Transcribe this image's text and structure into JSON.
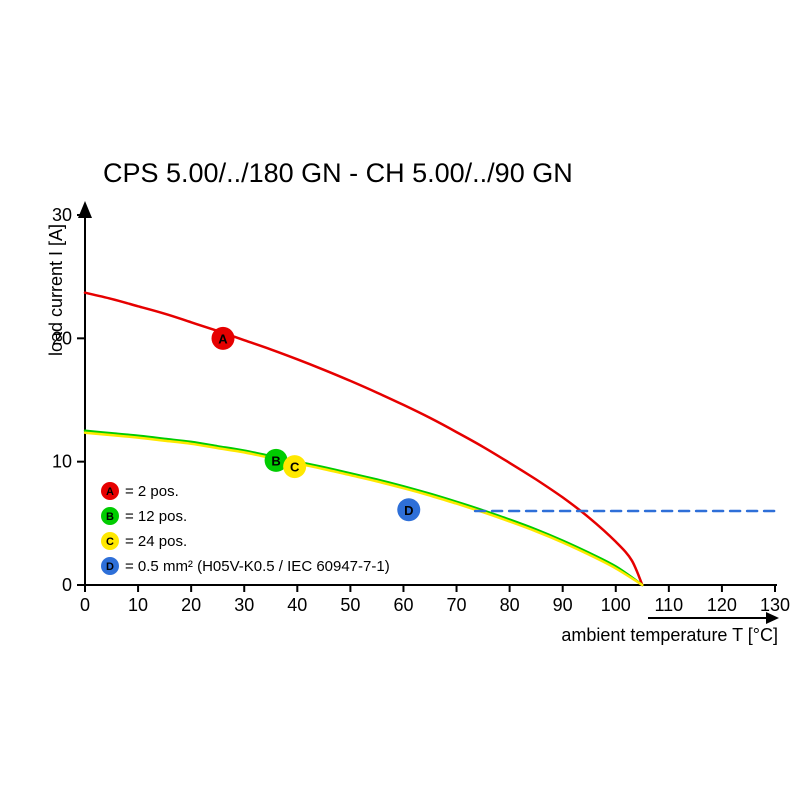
{
  "page": {
    "background": "#ffffff"
  },
  "chart_data": {
    "type": "line",
    "title": "CPS 5.00/../180 GN - CH 5.00/../90 GN",
    "xlabel": "ambient temperature T [°C]",
    "ylabel": "load current I [A]",
    "xlim": [
      0,
      130
    ],
    "ylim": [
      0,
      30
    ],
    "x_ticks": [
      0,
      10,
      20,
      30,
      40,
      50,
      60,
      70,
      80,
      90,
      100,
      110,
      120,
      130
    ],
    "y_ticks": [
      0,
      10,
      20,
      30
    ],
    "grid": false,
    "legend_position": "inside-bottom-left",
    "axis_color": "#000000",
    "series": [
      {
        "key": "A",
        "label": "2 pos.",
        "color": "#e60000",
        "style": "solid",
        "marker_at": [
          26,
          20
        ],
        "points": [
          [
            0,
            23.7
          ],
          [
            5,
            23.2
          ],
          [
            10,
            22.6
          ],
          [
            15,
            22.0
          ],
          [
            20,
            21.3
          ],
          [
            25,
            20.6
          ],
          [
            30,
            19.85
          ],
          [
            35,
            19.1
          ],
          [
            40,
            18.3
          ],
          [
            45,
            17.45
          ],
          [
            50,
            16.55
          ],
          [
            55,
            15.6
          ],
          [
            60,
            14.6
          ],
          [
            65,
            13.55
          ],
          [
            70,
            12.4
          ],
          [
            75,
            11.2
          ],
          [
            80,
            9.9
          ],
          [
            85,
            8.55
          ],
          [
            90,
            7.1
          ],
          [
            95,
            5.45
          ],
          [
            100,
            3.5
          ],
          [
            103,
            2.0
          ],
          [
            105,
            0
          ]
        ]
      },
      {
        "key": "B",
        "label": "12 pos.",
        "color": "#00cc00",
        "style": "solid",
        "marker_at": [
          36,
          10.1
        ],
        "points": [
          [
            0,
            12.5
          ],
          [
            5,
            12.3
          ],
          [
            10,
            12.1
          ],
          [
            15,
            11.85
          ],
          [
            20,
            11.6
          ],
          [
            25,
            11.25
          ],
          [
            30,
            10.9
          ],
          [
            35,
            10.45
          ],
          [
            40,
            10.0
          ],
          [
            45,
            9.55
          ],
          [
            50,
            9.05
          ],
          [
            55,
            8.55
          ],
          [
            60,
            8.0
          ],
          [
            65,
            7.4
          ],
          [
            70,
            6.75
          ],
          [
            75,
            6.05
          ],
          [
            80,
            5.3
          ],
          [
            85,
            4.5
          ],
          [
            90,
            3.6
          ],
          [
            95,
            2.6
          ],
          [
            100,
            1.5
          ],
          [
            105,
            0
          ]
        ]
      },
      {
        "key": "C",
        "label": "24 pos.",
        "color": "#ffe800",
        "style": "solid",
        "marker_at": [
          39.5,
          9.6
        ],
        "points": [
          [
            0,
            12.35
          ],
          [
            5,
            12.15
          ],
          [
            10,
            11.95
          ],
          [
            15,
            11.7
          ],
          [
            20,
            11.45
          ],
          [
            25,
            11.1
          ],
          [
            30,
            10.75
          ],
          [
            35,
            10.3
          ],
          [
            40,
            9.85
          ],
          [
            45,
            9.4
          ],
          [
            50,
            8.9
          ],
          [
            55,
            8.4
          ],
          [
            60,
            7.85
          ],
          [
            65,
            7.25
          ],
          [
            70,
            6.6
          ],
          [
            75,
            5.9
          ],
          [
            80,
            5.15
          ],
          [
            85,
            4.35
          ],
          [
            90,
            3.45
          ],
          [
            95,
            2.45
          ],
          [
            100,
            1.35
          ],
          [
            105,
            0
          ]
        ]
      },
      {
        "key": "D",
        "label": "0.5 mm² (H05V-K0.5 / IEC 60947-7-1)",
        "color": "#2e6fd8",
        "style": "dashed",
        "marker_at": [
          61,
          6.1
        ],
        "points": [
          [
            73.5,
            6
          ],
          [
            130,
            6
          ]
        ]
      }
    ],
    "legend": [
      {
        "key": "A",
        "color": "#e60000",
        "text": "= 2 pos."
      },
      {
        "key": "B",
        "color": "#00cc00",
        "text": "= 12 pos."
      },
      {
        "key": "C",
        "color": "#ffe800",
        "text": "= 24 pos."
      },
      {
        "key": "D",
        "color": "#2e6fd8",
        "text": "= 0.5 mm² (H05V-K0.5 / IEC 60947-7-1)"
      }
    ]
  }
}
